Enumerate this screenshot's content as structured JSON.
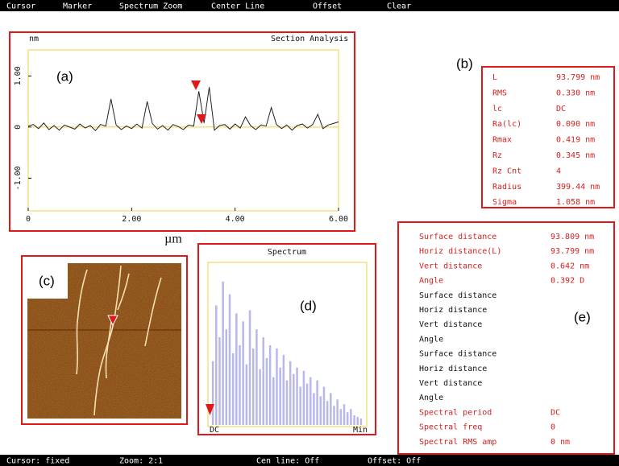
{
  "menu": [
    "Cursor",
    "Marker",
    "Spectrum Zoom",
    "Center Line",
    "Offset",
    "Clear"
  ],
  "status": [
    "Cursor: fixed",
    "Zoom: 2:1",
    "Cen line: Off",
    "Offset: Off"
  ],
  "panels": {
    "a": "(a)",
    "b": "(b)",
    "c": "(c)",
    "d": "(d)",
    "e": "(e)"
  },
  "roughness": [
    [
      "L",
      "93.799 nm"
    ],
    [
      "RMS",
      "0.330 nm"
    ],
    [
      "lc",
      "DC"
    ],
    [
      "Ra(lc)",
      "0.090 nm"
    ],
    [
      "Rmax",
      "0.419 nm"
    ],
    [
      "Rz",
      "0.345 nm"
    ],
    [
      "Rz Cnt",
      "4"
    ],
    [
      "Radius",
      "399.44 nm"
    ],
    [
      "Sigma",
      "1.058 nm"
    ]
  ],
  "measurements": [
    {
      "label": "Surface distance",
      "value": "93.809 nm",
      "color": "#d42020"
    },
    {
      "label": "Horiz distance(L)",
      "value": "93.799 nm",
      "color": "#d42020"
    },
    {
      "label": "Vert distance",
      "value": "0.642 nm",
      "color": "#d42020"
    },
    {
      "label": "Angle",
      "value": "0.392 D",
      "color": "#d42020"
    },
    {
      "label": "Surface distance",
      "color": "#111"
    },
    {
      "label": "Horiz distance",
      "color": "#111"
    },
    {
      "label": "Vert distance",
      "color": "#111"
    },
    {
      "label": "Angle",
      "color": "#111"
    },
    {
      "label": "Surface distance",
      "color": "#111"
    },
    {
      "label": "Horiz distance",
      "color": "#111"
    },
    {
      "label": "Vert distance",
      "color": "#111"
    },
    {
      "label": "Angle",
      "color": "#111"
    },
    {
      "label": "Spectral period",
      "value": "DC",
      "color": "#d42020"
    },
    {
      "label": "Spectral freq",
      "value": "0",
      "color": "#d42020"
    },
    {
      "label": "Spectral RMS amp",
      "value": "0 nm",
      "color": "#d42020"
    }
  ],
  "chart_data": [
    {
      "type": "line",
      "title": "Section Analysis",
      "y_label": "nm",
      "x_label": "µm",
      "color": "#222",
      "x": [
        0,
        0.1,
        0.2,
        0.3,
        0.4,
        0.5,
        0.6,
        0.7,
        0.8,
        0.9,
        1.0,
        1.1,
        1.2,
        1.3,
        1.4,
        1.5,
        1.6,
        1.7,
        1.8,
        1.9,
        2.0,
        2.1,
        2.2,
        2.3,
        2.4,
        2.5,
        2.6,
        2.7,
        2.8,
        2.9,
        3.0,
        3.1,
        3.2,
        3.3,
        3.4,
        3.5,
        3.6,
        3.7,
        3.8,
        3.9,
        4.0,
        4.1,
        4.2,
        4.3,
        4.4,
        4.5,
        4.6,
        4.7,
        4.8,
        4.9,
        5.0,
        5.1,
        5.2,
        5.3,
        5.4,
        5.5,
        5.6,
        5.7,
        5.8,
        5.9,
        6.0
      ],
      "values": [
        0.02,
        0.05,
        -0.03,
        0.08,
        -0.05,
        0.03,
        -0.06,
        0.04,
        0.0,
        -0.04,
        0.06,
        -0.02,
        0.03,
        -0.07,
        0.05,
        0.02,
        0.55,
        0.04,
        -0.05,
        0.02,
        -0.03,
        0.06,
        -0.02,
        0.5,
        0.07,
        -0.04,
        0.03,
        -0.06,
        0.05,
        0.01,
        -0.05,
        0.04,
        0.02,
        0.7,
        0.08,
        0.78,
        -0.06,
        0.03,
        0.05,
        -0.04,
        0.06,
        -0.02,
        0.2,
        0.03,
        -0.05,
        0.04,
        0.02,
        0.38,
        0.05,
        -0.03,
        0.04,
        -0.06,
        0.03,
        0.06,
        -0.02,
        0.05,
        0.25,
        -0.03,
        0.04,
        0.07,
        0.1
      ],
      "xlim": [
        0,
        6.0
      ],
      "ylim": [
        -1.64,
        1.51
      ],
      "xticks": [
        0,
        {
          "value": 2,
          "label": "2.00"
        },
        {
          "value": 4,
          "label": "4.00"
        },
        {
          "value": 6,
          "label": "6.00"
        }
      ],
      "yticks": [
        {
          "value": 1,
          "label": "1.00"
        },
        0,
        {
          "value": -1,
          "label": "-1.00"
        }
      ],
      "centerline_color": "#f0d040"
    },
    {
      "type": "bar",
      "title": "Spectrum",
      "color": "#b8b8ec",
      "categories": [
        "DC",
        null,
        null,
        null,
        null,
        null,
        null,
        null,
        null,
        null,
        null,
        null,
        null,
        null,
        null,
        null,
        null,
        null,
        null,
        null,
        null,
        null,
        null,
        null,
        null,
        null,
        null,
        null,
        null,
        null,
        null,
        null,
        null,
        null,
        null,
        null,
        null,
        null,
        null,
        null,
        null,
        null,
        null,
        null,
        "Min"
      ],
      "values": [
        40,
        75,
        55,
        90,
        60,
        82,
        45,
        70,
        50,
        65,
        38,
        72,
        48,
        60,
        35,
        55,
        42,
        50,
        30,
        48,
        36,
        44,
        28,
        40,
        32,
        36,
        24,
        34,
        26,
        30,
        20,
        28,
        18,
        24,
        15,
        20,
        12,
        16,
        10,
        13,
        8,
        10,
        6,
        5,
        4
      ],
      "ylim": [
        0,
        100
      ]
    }
  ]
}
